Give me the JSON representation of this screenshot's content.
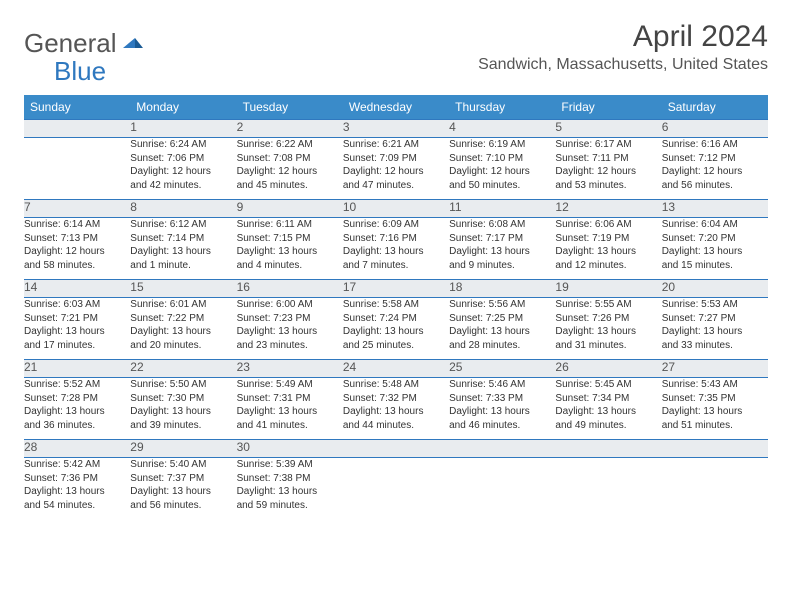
{
  "brand": {
    "general": "General",
    "blue": "Blue"
  },
  "title": "April 2024",
  "location": "Sandwich, Massachusetts, United States",
  "colors": {
    "header_bg": "#3a8bc9",
    "header_text": "#ffffff",
    "daynum_bg": "#e9ecef",
    "border": "#2f78bf",
    "brand_blue": "#2f78bf"
  },
  "weekdays": [
    "Sunday",
    "Monday",
    "Tuesday",
    "Wednesday",
    "Thursday",
    "Friday",
    "Saturday"
  ],
  "weeks": [
    {
      "nums": [
        "",
        "1",
        "2",
        "3",
        "4",
        "5",
        "6"
      ],
      "cells": [
        null,
        {
          "sunrise": "Sunrise: 6:24 AM",
          "sunset": "Sunset: 7:06 PM",
          "d1": "Daylight: 12 hours",
          "d2": "and 42 minutes."
        },
        {
          "sunrise": "Sunrise: 6:22 AM",
          "sunset": "Sunset: 7:08 PM",
          "d1": "Daylight: 12 hours",
          "d2": "and 45 minutes."
        },
        {
          "sunrise": "Sunrise: 6:21 AM",
          "sunset": "Sunset: 7:09 PM",
          "d1": "Daylight: 12 hours",
          "d2": "and 47 minutes."
        },
        {
          "sunrise": "Sunrise: 6:19 AM",
          "sunset": "Sunset: 7:10 PM",
          "d1": "Daylight: 12 hours",
          "d2": "and 50 minutes."
        },
        {
          "sunrise": "Sunrise: 6:17 AM",
          "sunset": "Sunset: 7:11 PM",
          "d1": "Daylight: 12 hours",
          "d2": "and 53 minutes."
        },
        {
          "sunrise": "Sunrise: 6:16 AM",
          "sunset": "Sunset: 7:12 PM",
          "d1": "Daylight: 12 hours",
          "d2": "and 56 minutes."
        }
      ]
    },
    {
      "nums": [
        "7",
        "8",
        "9",
        "10",
        "11",
        "12",
        "13"
      ],
      "cells": [
        {
          "sunrise": "Sunrise: 6:14 AM",
          "sunset": "Sunset: 7:13 PM",
          "d1": "Daylight: 12 hours",
          "d2": "and 58 minutes."
        },
        {
          "sunrise": "Sunrise: 6:12 AM",
          "sunset": "Sunset: 7:14 PM",
          "d1": "Daylight: 13 hours",
          "d2": "and 1 minute."
        },
        {
          "sunrise": "Sunrise: 6:11 AM",
          "sunset": "Sunset: 7:15 PM",
          "d1": "Daylight: 13 hours",
          "d2": "and 4 minutes."
        },
        {
          "sunrise": "Sunrise: 6:09 AM",
          "sunset": "Sunset: 7:16 PM",
          "d1": "Daylight: 13 hours",
          "d2": "and 7 minutes."
        },
        {
          "sunrise": "Sunrise: 6:08 AM",
          "sunset": "Sunset: 7:17 PM",
          "d1": "Daylight: 13 hours",
          "d2": "and 9 minutes."
        },
        {
          "sunrise": "Sunrise: 6:06 AM",
          "sunset": "Sunset: 7:19 PM",
          "d1": "Daylight: 13 hours",
          "d2": "and 12 minutes."
        },
        {
          "sunrise": "Sunrise: 6:04 AM",
          "sunset": "Sunset: 7:20 PM",
          "d1": "Daylight: 13 hours",
          "d2": "and 15 minutes."
        }
      ]
    },
    {
      "nums": [
        "14",
        "15",
        "16",
        "17",
        "18",
        "19",
        "20"
      ],
      "cells": [
        {
          "sunrise": "Sunrise: 6:03 AM",
          "sunset": "Sunset: 7:21 PM",
          "d1": "Daylight: 13 hours",
          "d2": "and 17 minutes."
        },
        {
          "sunrise": "Sunrise: 6:01 AM",
          "sunset": "Sunset: 7:22 PM",
          "d1": "Daylight: 13 hours",
          "d2": "and 20 minutes."
        },
        {
          "sunrise": "Sunrise: 6:00 AM",
          "sunset": "Sunset: 7:23 PM",
          "d1": "Daylight: 13 hours",
          "d2": "and 23 minutes."
        },
        {
          "sunrise": "Sunrise: 5:58 AM",
          "sunset": "Sunset: 7:24 PM",
          "d1": "Daylight: 13 hours",
          "d2": "and 25 minutes."
        },
        {
          "sunrise": "Sunrise: 5:56 AM",
          "sunset": "Sunset: 7:25 PM",
          "d1": "Daylight: 13 hours",
          "d2": "and 28 minutes."
        },
        {
          "sunrise": "Sunrise: 5:55 AM",
          "sunset": "Sunset: 7:26 PM",
          "d1": "Daylight: 13 hours",
          "d2": "and 31 minutes."
        },
        {
          "sunrise": "Sunrise: 5:53 AM",
          "sunset": "Sunset: 7:27 PM",
          "d1": "Daylight: 13 hours",
          "d2": "and 33 minutes."
        }
      ]
    },
    {
      "nums": [
        "21",
        "22",
        "23",
        "24",
        "25",
        "26",
        "27"
      ],
      "cells": [
        {
          "sunrise": "Sunrise: 5:52 AM",
          "sunset": "Sunset: 7:28 PM",
          "d1": "Daylight: 13 hours",
          "d2": "and 36 minutes."
        },
        {
          "sunrise": "Sunrise: 5:50 AM",
          "sunset": "Sunset: 7:30 PM",
          "d1": "Daylight: 13 hours",
          "d2": "and 39 minutes."
        },
        {
          "sunrise": "Sunrise: 5:49 AM",
          "sunset": "Sunset: 7:31 PM",
          "d1": "Daylight: 13 hours",
          "d2": "and 41 minutes."
        },
        {
          "sunrise": "Sunrise: 5:48 AM",
          "sunset": "Sunset: 7:32 PM",
          "d1": "Daylight: 13 hours",
          "d2": "and 44 minutes."
        },
        {
          "sunrise": "Sunrise: 5:46 AM",
          "sunset": "Sunset: 7:33 PM",
          "d1": "Daylight: 13 hours",
          "d2": "and 46 minutes."
        },
        {
          "sunrise": "Sunrise: 5:45 AM",
          "sunset": "Sunset: 7:34 PM",
          "d1": "Daylight: 13 hours",
          "d2": "and 49 minutes."
        },
        {
          "sunrise": "Sunrise: 5:43 AM",
          "sunset": "Sunset: 7:35 PM",
          "d1": "Daylight: 13 hours",
          "d2": "and 51 minutes."
        }
      ]
    },
    {
      "nums": [
        "28",
        "29",
        "30",
        "",
        "",
        "",
        ""
      ],
      "cells": [
        {
          "sunrise": "Sunrise: 5:42 AM",
          "sunset": "Sunset: 7:36 PM",
          "d1": "Daylight: 13 hours",
          "d2": "and 54 minutes."
        },
        {
          "sunrise": "Sunrise: 5:40 AM",
          "sunset": "Sunset: 7:37 PM",
          "d1": "Daylight: 13 hours",
          "d2": "and 56 minutes."
        },
        {
          "sunrise": "Sunrise: 5:39 AM",
          "sunset": "Sunset: 7:38 PM",
          "d1": "Daylight: 13 hours",
          "d2": "and 59 minutes."
        },
        null,
        null,
        null,
        null
      ]
    }
  ]
}
